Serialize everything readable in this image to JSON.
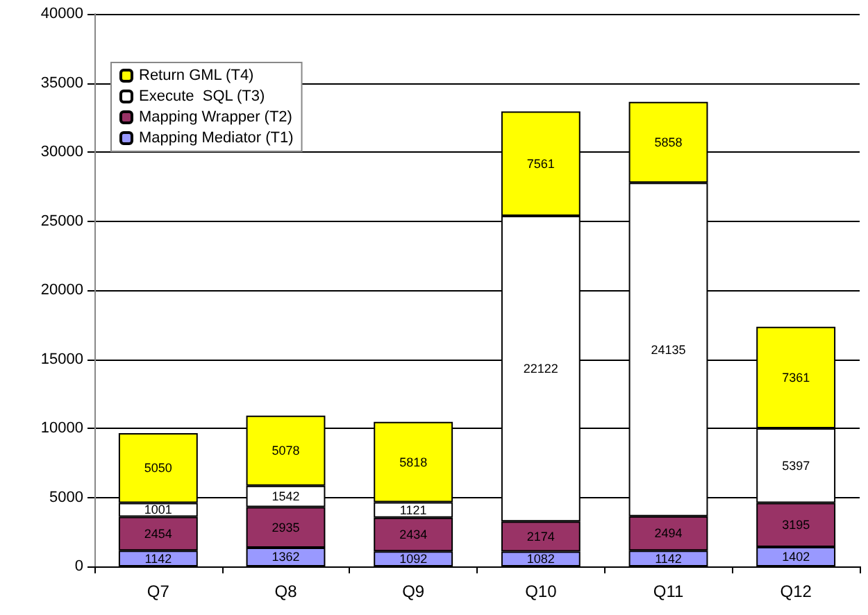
{
  "chart_data": {
    "type": "bar",
    "stacked": true,
    "categories": [
      "Q7",
      "Q8",
      "Q9",
      "Q10",
      "Q11",
      "Q12"
    ],
    "series": [
      {
        "name": "Mapping Mediator (T1)",
        "color": "#9999ff",
        "values": [
          1142,
          1362,
          1092,
          1082,
          1142,
          1402
        ]
      },
      {
        "name": "Mapping Wrapper (T2)",
        "color": "#993366",
        "values": [
          2454,
          2935,
          2434,
          2174,
          2494,
          3195
        ]
      },
      {
        "name": "Execute  SQL (T3)",
        "color": "#ffffff",
        "values": [
          1001,
          1542,
          1121,
          22122,
          24135,
          5397
        ]
      },
      {
        "name": "Return GML (T4)",
        "color": "#ffff00",
        "values": [
          5050,
          5078,
          5818,
          7561,
          5858,
          7361
        ]
      }
    ],
    "ylim": [
      0,
      40000
    ],
    "yticks": [
      0,
      5000,
      10000,
      15000,
      20000,
      25000,
      30000,
      35000,
      40000
    ],
    "grid": "y",
    "legend": "top left",
    "data_labels": true
  }
}
